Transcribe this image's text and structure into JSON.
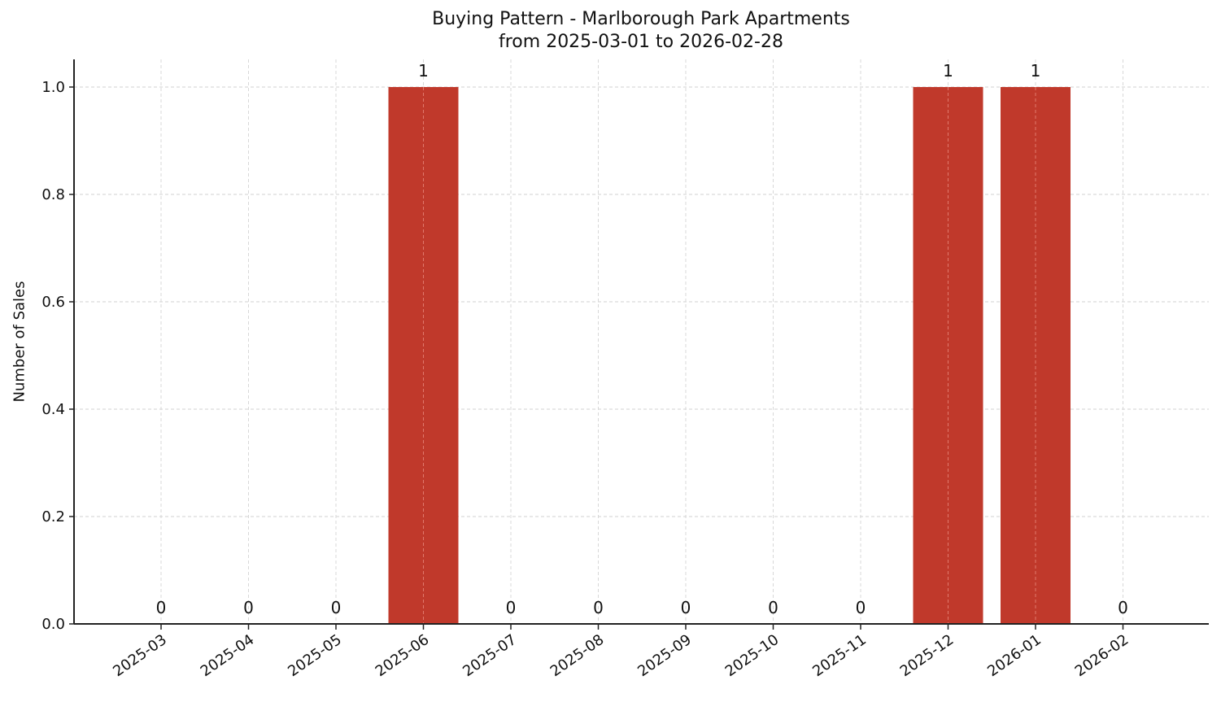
{
  "chart_data": {
    "type": "bar",
    "title": "Buying Pattern - Marlborough Park Apartments",
    "subtitle": "from 2025-03-01 to 2026-02-28",
    "xlabel": "",
    "ylabel": "Number of Sales",
    "categories": [
      "2025-03",
      "2025-04",
      "2025-05",
      "2025-06",
      "2025-07",
      "2025-08",
      "2025-09",
      "2025-10",
      "2025-11",
      "2025-12",
      "2026-01",
      "2026-02"
    ],
    "values": [
      0,
      0,
      0,
      1,
      0,
      0,
      0,
      0,
      0,
      1,
      1,
      0
    ],
    "ylim": [
      0,
      1.05
    ],
    "yticks": [
      "0.0",
      "0.2",
      "0.4",
      "0.6",
      "0.8",
      "1.0"
    ],
    "grid": true,
    "bar_color": "#c0392b",
    "data_labels": true,
    "legend": null
  }
}
